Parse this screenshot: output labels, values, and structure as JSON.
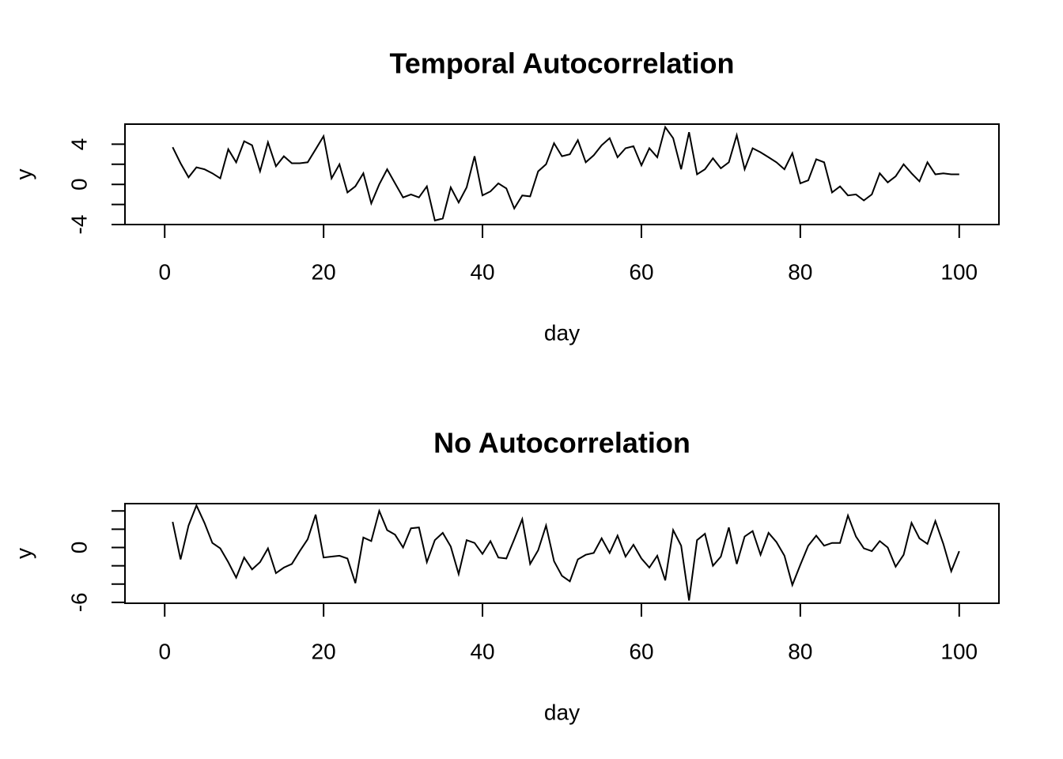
{
  "chart_data": [
    {
      "type": "line",
      "title": "Temporal Autocorrelation",
      "xlabel": "day",
      "ylabel": "y",
      "xlim": [
        -5,
        105
      ],
      "ylim": [
        -4,
        6
      ],
      "x_ticks": [
        0,
        20,
        40,
        60,
        80,
        100
      ],
      "x_tick_labels": [
        "0",
        "20",
        "40",
        "60",
        "80",
        "100"
      ],
      "y_ticks": [
        -4,
        -2,
        0,
        2,
        4
      ],
      "y_tick_labels": [
        "-4",
        "",
        "0",
        "",
        "4"
      ],
      "grid": false,
      "series": [
        {
          "x": [
            1,
            2,
            3,
            4,
            5,
            6,
            7,
            8,
            9,
            10,
            11,
            12,
            13,
            14,
            15,
            16,
            17,
            18,
            19,
            20,
            21,
            22,
            23,
            24,
            25,
            26,
            27,
            28,
            29,
            30,
            31,
            32,
            33,
            34,
            35,
            36,
            37,
            38,
            39,
            40,
            41,
            42,
            43,
            44,
            45,
            46,
            47,
            48,
            49,
            50,
            51,
            52,
            53,
            54,
            55,
            56,
            57,
            58,
            59,
            60,
            61,
            62,
            63,
            64,
            65,
            66,
            67,
            68,
            69,
            70,
            71,
            72,
            73,
            74,
            75,
            76,
            77,
            78,
            79,
            80,
            81,
            82,
            83,
            84,
            85,
            86,
            87,
            88,
            89,
            90,
            91,
            92,
            93,
            94,
            95,
            96,
            97,
            98,
            99,
            100
          ],
          "y": [
            3.7,
            2.1,
            0.7,
            1.7,
            1.5,
            1.1,
            0.6,
            3.5,
            2.2,
            4.3,
            3.9,
            1.3,
            4.2,
            1.8,
            2.8,
            2.1,
            2.1,
            2.2,
            3.5,
            4.8,
            0.6,
            2.0,
            -0.8,
            -0.2,
            1.1,
            -1.9,
            0.0,
            1.5,
            0.1,
            -1.3,
            -1.0,
            -1.3,
            -0.2,
            -3.6,
            -3.4,
            -0.3,
            -1.8,
            -0.3,
            2.8,
            -1.1,
            -0.7,
            0.1,
            -0.4,
            -2.4,
            -1.1,
            -1.2,
            1.3,
            2.0,
            4.1,
            2.8,
            3.0,
            4.4,
            2.2,
            2.9,
            3.9,
            4.6,
            2.7,
            3.6,
            3.8,
            1.9,
            3.6,
            2.7,
            5.7,
            4.6,
            1.5,
            5.2,
            1.0,
            1.5,
            2.6,
            1.6,
            2.2,
            4.9,
            1.5,
            3.6,
            3.2,
            2.7,
            2.2,
            1.5,
            3.1,
            0.1,
            0.4,
            2.5,
            2.2,
            -0.8,
            -0.2,
            -1.1,
            -1.0,
            -1.6,
            -1.0,
            1.1,
            0.2,
            0.8,
            2.0,
            1.1,
            0.3,
            2.2,
            1.0,
            1.1,
            1.0,
            1.0
          ]
        }
      ]
    },
    {
      "type": "line",
      "title": "No Autocorrelation",
      "xlabel": "day",
      "ylabel": "y",
      "xlim": [
        -5,
        105
      ],
      "ylim": [
        -6.1,
        4.8
      ],
      "x_ticks": [
        0,
        20,
        40,
        60,
        80,
        100
      ],
      "x_tick_labels": [
        "0",
        "20",
        "40",
        "60",
        "80",
        "100"
      ],
      "y_ticks": [
        -6,
        -4,
        -2,
        0,
        2,
        4
      ],
      "y_tick_labels": [
        "-6",
        "",
        "",
        "0",
        "",
        ""
      ],
      "grid": false,
      "series": [
        {
          "x": [
            1,
            2,
            3,
            4,
            5,
            6,
            7,
            8,
            9,
            10,
            11,
            12,
            13,
            14,
            15,
            16,
            17,
            18,
            19,
            20,
            21,
            22,
            23,
            24,
            25,
            26,
            27,
            28,
            29,
            30,
            31,
            32,
            33,
            34,
            35,
            36,
            37,
            38,
            39,
            40,
            41,
            42,
            43,
            44,
            45,
            46,
            47,
            48,
            49,
            50,
            51,
            52,
            53,
            54,
            55,
            56,
            57,
            58,
            59,
            60,
            61,
            62,
            63,
            64,
            65,
            66,
            67,
            68,
            69,
            70,
            71,
            72,
            73,
            74,
            75,
            76,
            77,
            78,
            79,
            80,
            81,
            82,
            83,
            84,
            85,
            86,
            87,
            88,
            89,
            90,
            91,
            92,
            93,
            94,
            95,
            96,
            97,
            98,
            99,
            100
          ],
          "y": [
            2.8,
            -1.3,
            2.4,
            4.6,
            2.7,
            0.5,
            -0.1,
            -1.6,
            -3.3,
            -1.1,
            -2.4,
            -1.6,
            -0.1,
            -2.8,
            -2.2,
            -1.8,
            -0.4,
            0.9,
            3.6,
            -1.1,
            -1.0,
            -0.9,
            -1.2,
            -3.9,
            1.1,
            0.7,
            4.0,
            1.9,
            1.4,
            0.0,
            2.1,
            2.2,
            -1.6,
            0.8,
            1.6,
            0.1,
            -2.9,
            0.8,
            0.5,
            -0.7,
            0.7,
            -1.1,
            -1.2,
            0.9,
            3.1,
            -1.8,
            -0.3,
            2.4,
            -1.5,
            -3.1,
            -3.7,
            -1.3,
            -0.8,
            -0.6,
            1.0,
            -0.6,
            1.3,
            -1.0,
            0.3,
            -1.2,
            -2.2,
            -0.9,
            -3.6,
            1.9,
            0.2,
            -5.8,
            0.8,
            1.5,
            -2.0,
            -1.0,
            2.2,
            -1.8,
            1.2,
            1.8,
            -0.8,
            1.6,
            0.6,
            -0.9,
            -4.1,
            -1.9,
            0.2,
            1.3,
            0.2,
            0.5,
            0.5,
            3.5,
            1.2,
            -0.1,
            -0.4,
            0.7,
            0.0,
            -2.1,
            -0.8,
            2.7,
            1.0,
            0.4,
            2.9,
            0.4,
            -2.6,
            -0.4
          ]
        }
      ]
    }
  ]
}
